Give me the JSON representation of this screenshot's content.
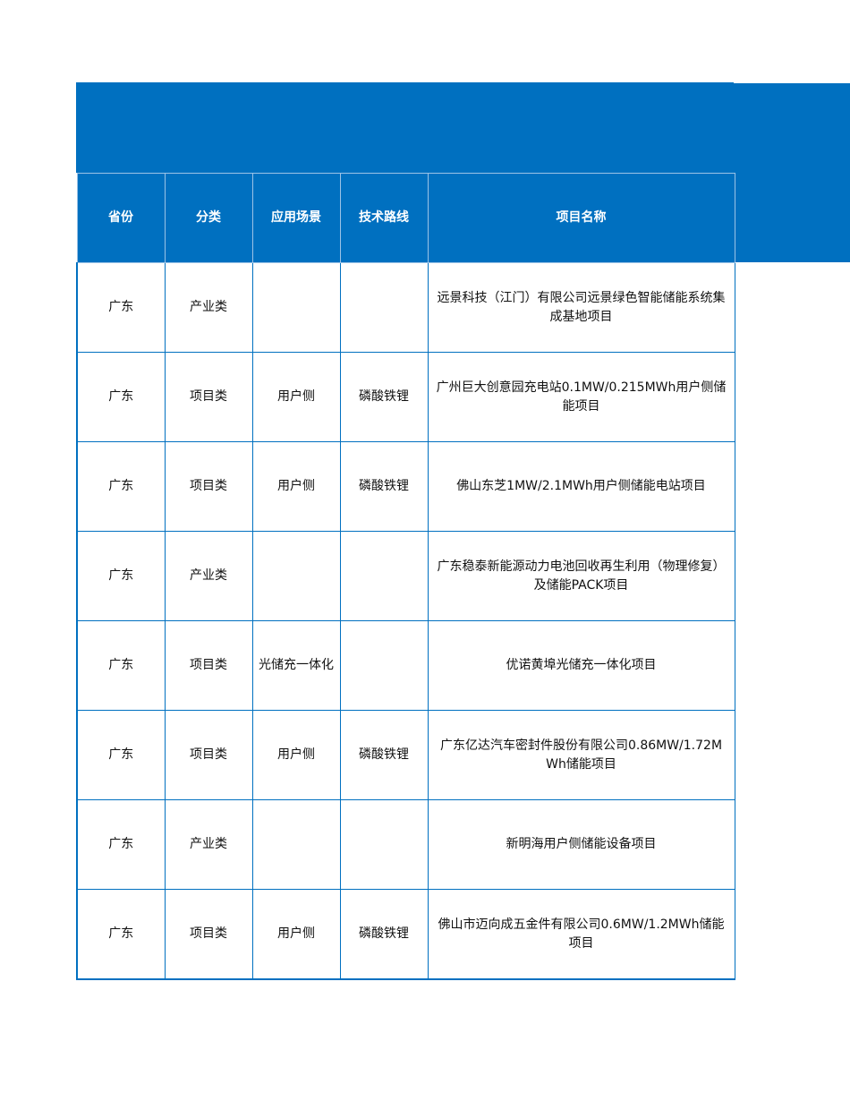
{
  "colors": {
    "header_bg": "#0070c0",
    "border": "#0070c0"
  },
  "headers": [
    "省份",
    "分类",
    "应用场景",
    "技术路线",
    "项目名称"
  ],
  "rows": [
    {
      "province": "广东",
      "category": "产业类",
      "scenario": "",
      "tech": "",
      "name": "远景科技（江门）有限公司远景绿色智能储能系统集成基地项目"
    },
    {
      "province": "广东",
      "category": "项目类",
      "scenario": "用户侧",
      "tech": "磷酸铁锂",
      "name": "广州巨大创意园充电站0.1MW/0.215MWh用户侧储能项目"
    },
    {
      "province": "广东",
      "category": "项目类",
      "scenario": "用户侧",
      "tech": "磷酸铁锂",
      "name": "佛山东芝1MW/2.1MWh用户侧储能电站项目"
    },
    {
      "province": "广东",
      "category": "产业类",
      "scenario": "",
      "tech": "",
      "name": "广东稳泰新能源动力电池回收再生利用（物理修复）及储能PACK项目"
    },
    {
      "province": "广东",
      "category": "项目类",
      "scenario": "光储充一体化",
      "tech": "",
      "name": "优诺黄埠光储充一体化项目"
    },
    {
      "province": "广东",
      "category": "项目类",
      "scenario": "用户侧",
      "tech": "磷酸铁锂",
      "name": "广东亿达汽车密封件股份有限公司0.86MW/1.72MWh储能项目"
    },
    {
      "province": "广东",
      "category": "产业类",
      "scenario": "",
      "tech": "",
      "name": "新明海用户侧储能设备项目"
    },
    {
      "province": "广东",
      "category": "项目类",
      "scenario": "用户侧",
      "tech": "磷酸铁锂",
      "name": "佛山市迈向成五金件有限公司0.6MW/1.2MWh储能项目"
    }
  ]
}
